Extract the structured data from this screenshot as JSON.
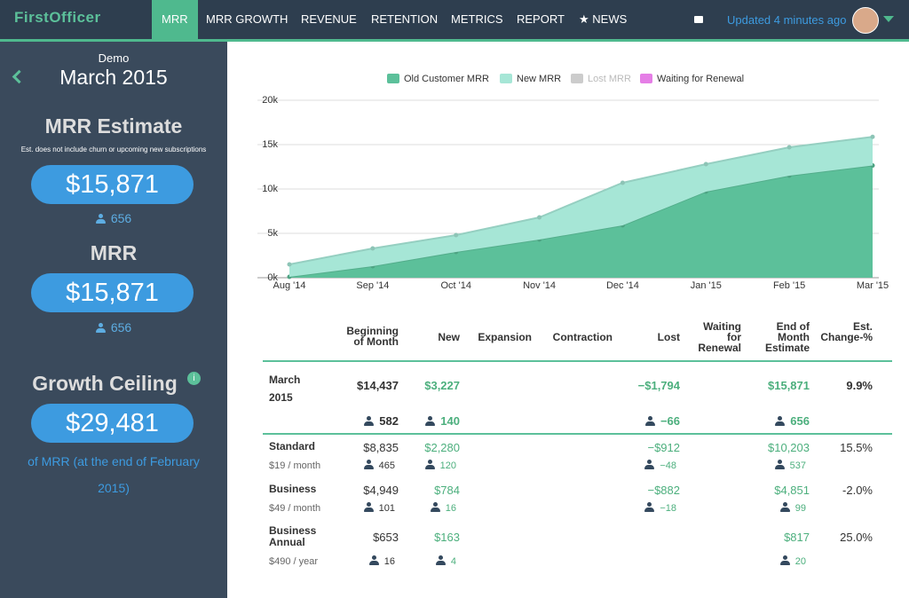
{
  "nav": {
    "logo": "FirstOfficer",
    "items": [
      "MRR",
      "MRR GROWTH",
      "REVENUE",
      "RETENTION",
      "METRICS",
      "REPORT",
      "★ NEWS"
    ],
    "status": "Updated 4 minutes ago"
  },
  "sidebar": {
    "account": "Demo",
    "period": "March 2015",
    "estimate_title": "MRR Estimate",
    "estimate_note": "Est. does not include churn or upcoming new subscriptions",
    "estimate_value": "$15,871",
    "estimate_count": "656",
    "mrr_title": "MRR",
    "mrr_value": "$15,871",
    "mrr_count": "656",
    "ceiling_title": "Growth Ceiling",
    "ceiling_info": "i",
    "ceiling_value": "$29,481",
    "ceiling_note": "of MRR (at the end of February 2015)"
  },
  "chart_data": {
    "type": "stacked-area",
    "categories": [
      "Aug '14",
      "Sep '14",
      "Oct '14",
      "Nov '14",
      "Dec '14",
      "Jan '15",
      "Feb '15",
      "Mar '15"
    ],
    "series": [
      {
        "name": "Old Customer MRR",
        "color": "#5cc09a",
        "values": [
          100,
          1300,
          2900,
          4300,
          5900,
          9700,
          11500,
          12644
        ]
      },
      {
        "name": "New MRR",
        "color": "#a6e6d6",
        "values": [
          1400,
          2000,
          1900,
          2500,
          4800,
          3100,
          3200,
          3227
        ]
      },
      {
        "name": "Lost MRR",
        "color": "#cccccc",
        "hidden": true,
        "values": [
          null,
          null,
          null,
          null,
          null,
          null,
          null,
          null
        ]
      },
      {
        "name": "Waiting for Renewal",
        "color": "#e57ee6",
        "values": [
          null,
          null,
          null,
          null,
          null,
          null,
          null,
          null
        ]
      }
    ],
    "ylim": [
      0,
      20000
    ],
    "yticks": [
      {
        "value": 0,
        "label": "0k"
      },
      {
        "value": 5000,
        "label": "5k"
      },
      {
        "value": 10000,
        "label": "10k"
      },
      {
        "value": 15000,
        "label": "15k"
      },
      {
        "value": 20000,
        "label": "20k"
      }
    ],
    "grid": true,
    "legend": "top"
  },
  "table": {
    "columns": [
      {
        "key": "begin",
        "label": "Beginning of Month"
      },
      {
        "key": "new",
        "label": "New"
      },
      {
        "key": "expansion",
        "label": "Expansion"
      },
      {
        "key": "contraction",
        "label": "Contraction"
      },
      {
        "key": "lost",
        "label": "Lost"
      },
      {
        "key": "waiting",
        "label": "Waiting for Renewal"
      },
      {
        "key": "end",
        "label": "End of Month Estimate"
      },
      {
        "key": "change",
        "label": "Est. Change-%"
      }
    ],
    "rows": [
      {
        "label": "March 2015",
        "begin": "$14,437",
        "new": "$3,227",
        "lost": "−$1,794",
        "end": "$15,871",
        "change": "9.9%",
        "counts": {
          "begin": "582",
          "new": "140",
          "lost": "−66",
          "end": "656"
        }
      },
      {
        "label": "Standard",
        "sub": "$19 / month",
        "begin": "$8,835",
        "new": "$2,280",
        "lost": "−$912",
        "end": "$10,203",
        "change": "15.5%",
        "counts": {
          "begin": "465",
          "new": "120",
          "lost": "−48",
          "end": "537"
        }
      },
      {
        "label": "Business",
        "sub": "$49 / month",
        "begin": "$4,949",
        "new": "$784",
        "lost": "−$882",
        "end": "$4,851",
        "change": "-2.0%",
        "counts": {
          "begin": "101",
          "new": "16",
          "lost": "−18",
          "end": "99"
        }
      },
      {
        "label": "Business Annual",
        "sub": "$490 / year",
        "begin": "$653",
        "new": "$163",
        "end": "$817",
        "change": "25.0%",
        "counts": {
          "begin": "16",
          "new": "4",
          "end": "20"
        }
      }
    ]
  }
}
